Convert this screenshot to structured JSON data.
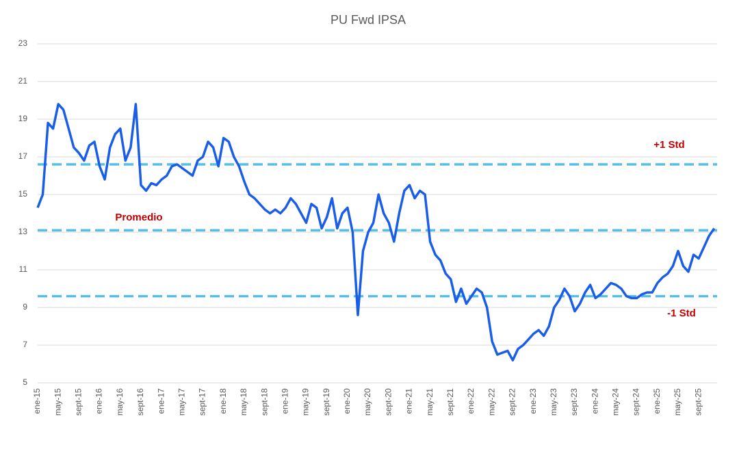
{
  "chart_data": {
    "type": "line",
    "title": "PU Fwd IPSA",
    "categories": [
      "ene-15",
      null,
      null,
      null,
      "may-15",
      null,
      null,
      null,
      "sept-15",
      null,
      null,
      null,
      "ene-16",
      null,
      null,
      null,
      "may-16",
      null,
      null,
      null,
      "sept-16",
      null,
      null,
      null,
      "ene-17",
      null,
      null,
      null,
      "may-17",
      null,
      null,
      null,
      "sept-17",
      null,
      null,
      null,
      "ene-18",
      null,
      null,
      null,
      "may-18",
      null,
      null,
      null,
      "sept-18",
      null,
      null,
      null,
      "ene-19",
      null,
      null,
      null,
      "may-19",
      null,
      null,
      null,
      "sept-19",
      null,
      null,
      null,
      "ene-20",
      null,
      null,
      null,
      "may-20",
      null,
      null,
      null,
      "sept-20",
      null,
      null,
      null,
      "ene-21",
      null,
      null,
      null,
      "may-21",
      null,
      null,
      null,
      "sept-21",
      null,
      null,
      null,
      "ene-22",
      null,
      null,
      null,
      "may-22",
      null,
      null,
      null,
      "sept-22",
      null,
      null,
      null,
      "ene-23",
      null,
      null,
      null,
      "may-23",
      null,
      null,
      null,
      "sept-23",
      null,
      null,
      null,
      "ene-24",
      null,
      null,
      null,
      "may-24",
      null,
      null,
      null,
      "sept-24",
      null,
      null,
      null,
      "ene-25",
      null,
      null,
      null,
      "may-25",
      null,
      null,
      null,
      "sept-25",
      null,
      null,
      null
    ],
    "series": [
      {
        "name": "PU Fwd IPSA",
        "color": "#1a5ee8",
        "values": [
          14.3,
          15.0,
          18.8,
          18.5,
          19.8,
          19.5,
          18.5,
          17.5,
          17.2,
          16.8,
          17.6,
          17.8,
          16.5,
          15.8,
          17.5,
          18.2,
          18.5,
          16.8,
          17.5,
          19.8,
          15.5,
          15.2,
          15.6,
          15.5,
          15.8,
          16.0,
          16.5,
          16.6,
          16.4,
          16.2,
          16.0,
          16.8,
          17.0,
          17.8,
          17.5,
          16.5,
          18.0,
          17.8,
          17.0,
          16.5,
          15.7,
          15.0,
          14.8,
          14.5,
          14.2,
          14.0,
          14.2,
          14.0,
          14.3,
          14.8,
          14.5,
          14.0,
          13.5,
          14.5,
          14.3,
          13.2,
          13.8,
          14.8,
          13.2,
          14.0,
          14.3,
          13.0,
          8.6,
          12.0,
          13.0,
          13.5,
          15.0,
          14.0,
          13.5,
          12.5,
          14.0,
          15.2,
          15.5,
          14.8,
          15.2,
          15.0,
          12.5,
          11.8,
          11.5,
          10.8,
          10.5,
          9.3,
          10.0,
          9.2,
          9.6,
          10.0,
          9.8,
          9.0,
          7.2,
          6.5,
          6.6,
          6.7,
          6.2,
          6.8,
          7.0,
          7.3,
          7.6,
          7.8,
          7.5,
          8.0,
          9.0,
          9.4,
          10.0,
          9.6,
          8.8,
          9.2,
          9.8,
          10.2,
          9.5,
          9.7,
          10.0,
          10.3,
          10.2,
          10.0,
          9.6,
          9.5,
          9.5,
          9.7,
          9.8,
          9.8,
          10.3,
          10.6,
          10.8,
          11.2,
          12.0,
          11.2,
          10.9,
          11.8,
          11.6,
          12.2,
          12.8,
          13.2
        ]
      }
    ],
    "reference_lines": [
      {
        "label": "+1 Std",
        "value": 16.6
      },
      {
        "label": "Promedio",
        "value": 13.1
      },
      {
        "label": "-1 Std",
        "value": 9.6
      }
    ],
    "reference_color": "#56bde8",
    "ylim": [
      5,
      23
    ],
    "yticks": [
      5,
      7,
      9,
      11,
      13,
      15,
      17,
      19,
      21,
      23
    ],
    "grid": true
  }
}
